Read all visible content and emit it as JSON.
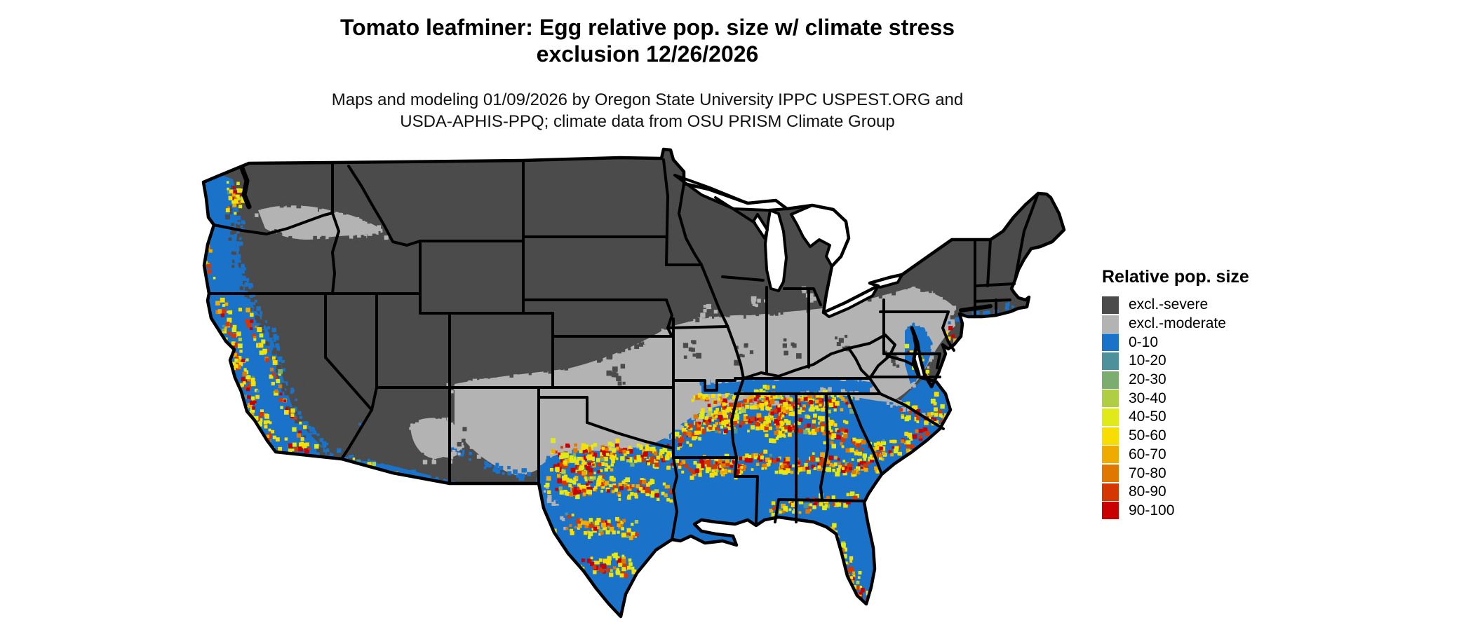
{
  "title": {
    "line1": "Tomato leafminer: Egg relative pop. size w/ climate stress",
    "line2": "exclusion 12/26/2026"
  },
  "subtitle": {
    "line1": "Maps and modeling 01/09/2026 by Oregon State University IPPC USPEST.ORG and",
    "line2": "USDA-APHIS-PPQ; climate data from OSU PRISM Climate Group"
  },
  "legend": {
    "title": "Relative pop. size",
    "items": [
      {
        "label": "excl.-severe",
        "color": "#4B4B4B"
      },
      {
        "label": "excl.-moderate",
        "color": "#B3B3B3"
      },
      {
        "label": "0-10",
        "color": "#1B72C9"
      },
      {
        "label": "10-20",
        "color": "#4D929B"
      },
      {
        "label": "20-30",
        "color": "#7BAD6E"
      },
      {
        "label": "30-40",
        "color": "#AFCE44"
      },
      {
        "label": "40-50",
        "color": "#E0EA18"
      },
      {
        "label": "50-60",
        "color": "#F8DE00"
      },
      {
        "label": "60-70",
        "color": "#EFAB00"
      },
      {
        "label": "70-80",
        "color": "#E07700"
      },
      {
        "label": "80-90",
        "color": "#D43800"
      },
      {
        "label": "90-100",
        "color": "#C80000"
      }
    ]
  },
  "map": {
    "background": "#ffffff",
    "water_color": "#ffffff",
    "state_border_color": "#000000",
    "region_colors": {
      "excl_severe": "#4B4B4B",
      "excl_moderate": "#B3B3B3",
      "pop_low": "#1B72C9"
    }
  }
}
